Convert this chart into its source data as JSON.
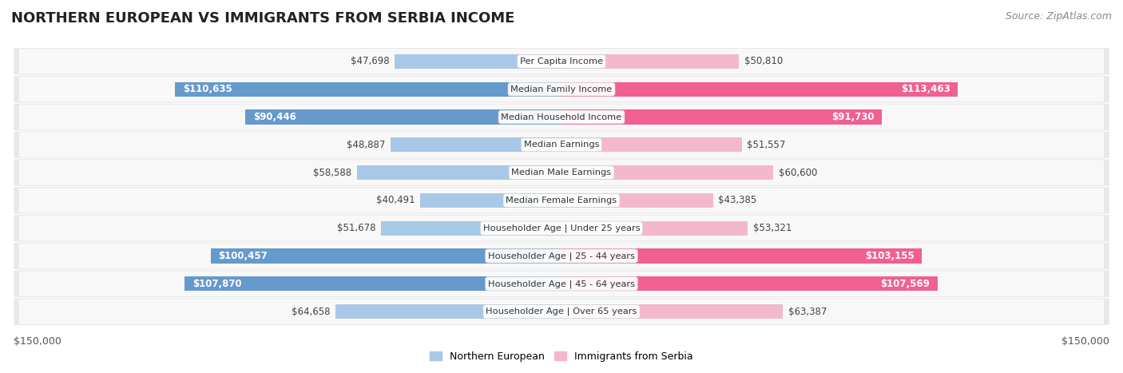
{
  "title": "NORTHERN EUROPEAN VS IMMIGRANTS FROM SERBIA INCOME",
  "source": "Source: ZipAtlas.com",
  "categories": [
    "Per Capita Income",
    "Median Family Income",
    "Median Household Income",
    "Median Earnings",
    "Median Male Earnings",
    "Median Female Earnings",
    "Householder Age | Under 25 years",
    "Householder Age | 25 - 44 years",
    "Householder Age | 45 - 64 years",
    "Householder Age | Over 65 years"
  ],
  "left_values": [
    47698,
    110635,
    90446,
    48887,
    58588,
    40491,
    51678,
    100457,
    107870,
    64658
  ],
  "right_values": [
    50810,
    113463,
    91730,
    51557,
    60600,
    43385,
    53321,
    103155,
    107569,
    63387
  ],
  "left_labels": [
    "$47,698",
    "$110,635",
    "$90,446",
    "$48,887",
    "$58,588",
    "$40,491",
    "$51,678",
    "$100,457",
    "$107,870",
    "$64,658"
  ],
  "right_labels": [
    "$50,810",
    "$113,463",
    "$91,730",
    "$51,557",
    "$60,600",
    "$43,385",
    "$53,321",
    "$103,155",
    "$107,569",
    "$63,387"
  ],
  "left_color_light": "#a8c8e8",
  "left_color_dark": "#6699cc",
  "right_color_light": "#f4b8cc",
  "right_color_dark": "#f06090",
  "max_value": 150000,
  "legend_left": "Northern European",
  "legend_right": "Immigrants from Serbia",
  "bar_height": 0.52,
  "label_threshold": 80000,
  "title_fontsize": 13,
  "source_fontsize": 9,
  "bar_label_fontsize": 8.5,
  "cat_label_fontsize": 8.2,
  "axis_label_fontsize": 9,
  "row_bg_color": "#e8e8e8",
  "row_inner_color": "#f8f8f8"
}
